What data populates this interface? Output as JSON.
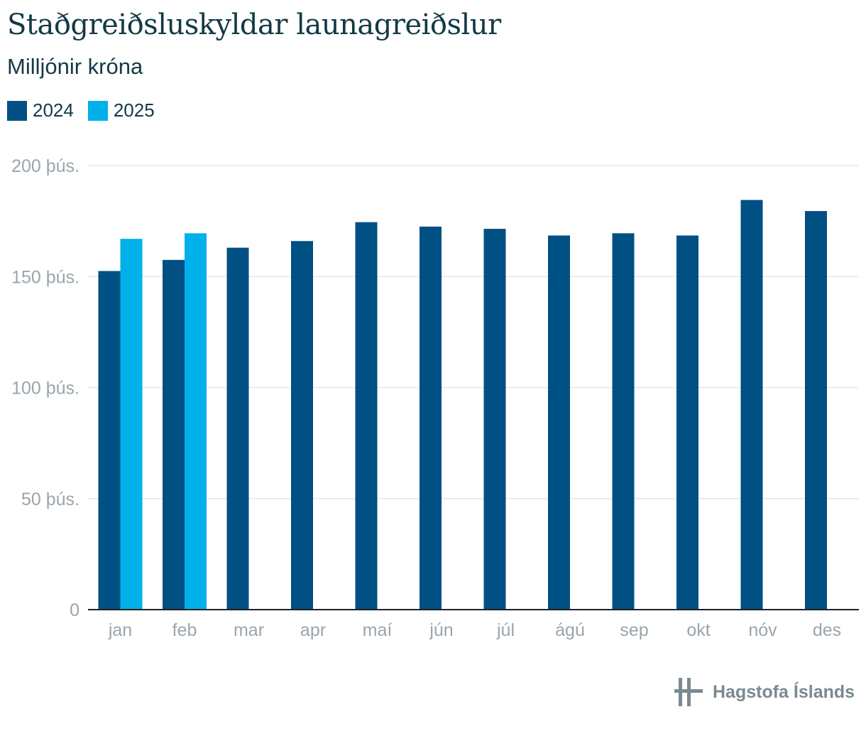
{
  "title": "Staðgreiðsluskyldar launagreiðslur",
  "subtitle": "Milljónir króna",
  "brand": {
    "name": "Hagstofa Íslands"
  },
  "chart_data": {
    "type": "bar",
    "categories": [
      "jan",
      "feb",
      "mar",
      "apr",
      "maí",
      "jún",
      "júl",
      "ágú",
      "sep",
      "okt",
      "nóv",
      "des"
    ],
    "series": [
      {
        "name": "2024",
        "color": "#005083",
        "values": [
          152500,
          157500,
          163000,
          166000,
          174500,
          172500,
          171500,
          168500,
          169500,
          168500,
          184500,
          179500
        ]
      },
      {
        "name": "2025",
        "color": "#00b0eb",
        "values": [
          167000,
          169500,
          null,
          null,
          null,
          null,
          null,
          null,
          null,
          null,
          null,
          null
        ]
      }
    ],
    "ylim": [
      0,
      200000
    ],
    "yticks": [
      0,
      50000,
      100000,
      150000,
      200000
    ],
    "ytick_labels": [
      "0",
      "50 þús.",
      "100 þús.",
      "150 þús.",
      "200 þús."
    ],
    "grid": true,
    "legend": "top-left"
  }
}
